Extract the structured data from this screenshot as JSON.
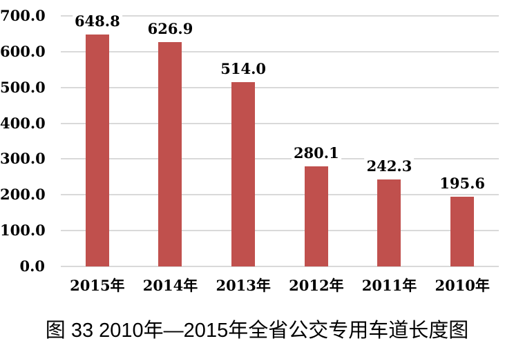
{
  "page": {
    "background": "#ffffff"
  },
  "chart_data": {
    "type": "bar",
    "title": "图 33  2010年—2015年全省公交专用车道长度图",
    "categories": [
      "2015年",
      "2014年",
      "2013年",
      "2012年",
      "2011年",
      "2010年"
    ],
    "values": [
      648.8,
      626.9,
      514.0,
      280.1,
      242.3,
      195.6
    ],
    "value_labels": [
      "648.8",
      "626.9",
      "514.0",
      "280.1",
      "242.3",
      "195.6"
    ],
    "xlabel": "",
    "ylabel": "",
    "ylim": [
      0,
      700
    ],
    "yticks": [
      {
        "value": 0,
        "label": "0.0"
      },
      {
        "value": 100,
        "label": "100.0"
      },
      {
        "value": 200,
        "label": "200.0"
      },
      {
        "value": 300,
        "label": "300.0"
      },
      {
        "value": 400,
        "label": "400.0"
      },
      {
        "value": 500,
        "label": "500.0"
      },
      {
        "value": 600,
        "label": "600.0"
      },
      {
        "value": 700,
        "label": "700.0"
      }
    ],
    "grid": true,
    "legend": false,
    "bar_color": "#C0504D",
    "gridline_color": "#D9D9D9",
    "text_color": "#000000"
  }
}
